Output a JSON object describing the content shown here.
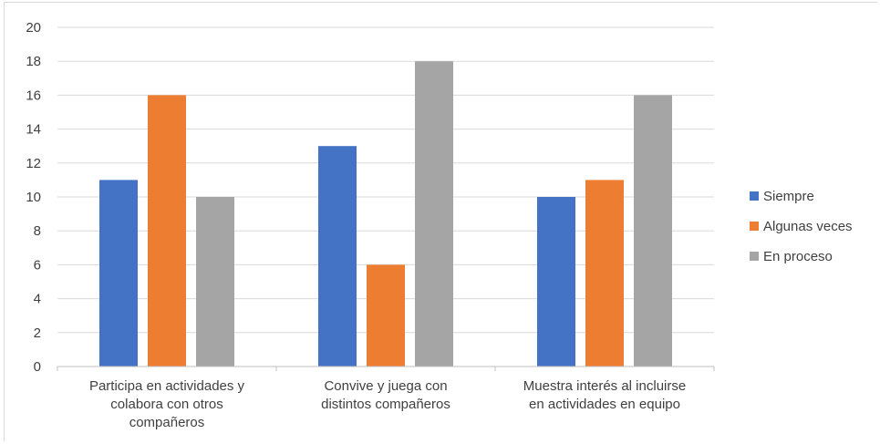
{
  "chart_data": {
    "type": "bar",
    "title": "",
    "xlabel": "",
    "ylabel": "",
    "ylim": [
      0,
      20
    ],
    "ytick_step": 2,
    "grid": true,
    "legend_position": "right",
    "categories": [
      [
        "Participa en actividades y",
        "colabora con otros",
        "compañeros"
      ],
      [
        "Convive y juega con",
        "distintos compañeros"
      ],
      [
        "Muestra interés al incluirse",
        "en actividades en equipo"
      ]
    ],
    "series": [
      {
        "name": "Siempre",
        "color": "#4472c4",
        "values": [
          11,
          13,
          10
        ]
      },
      {
        "name": "Algunas veces",
        "color": "#ed7d31",
        "values": [
          16,
          6,
          11
        ]
      },
      {
        "name": "En proceso",
        "color": "#a5a5a5",
        "values": [
          10,
          18,
          16
        ]
      }
    ],
    "gridline_color": "#d9d9d9",
    "axis_color": "#bfbfbf"
  }
}
